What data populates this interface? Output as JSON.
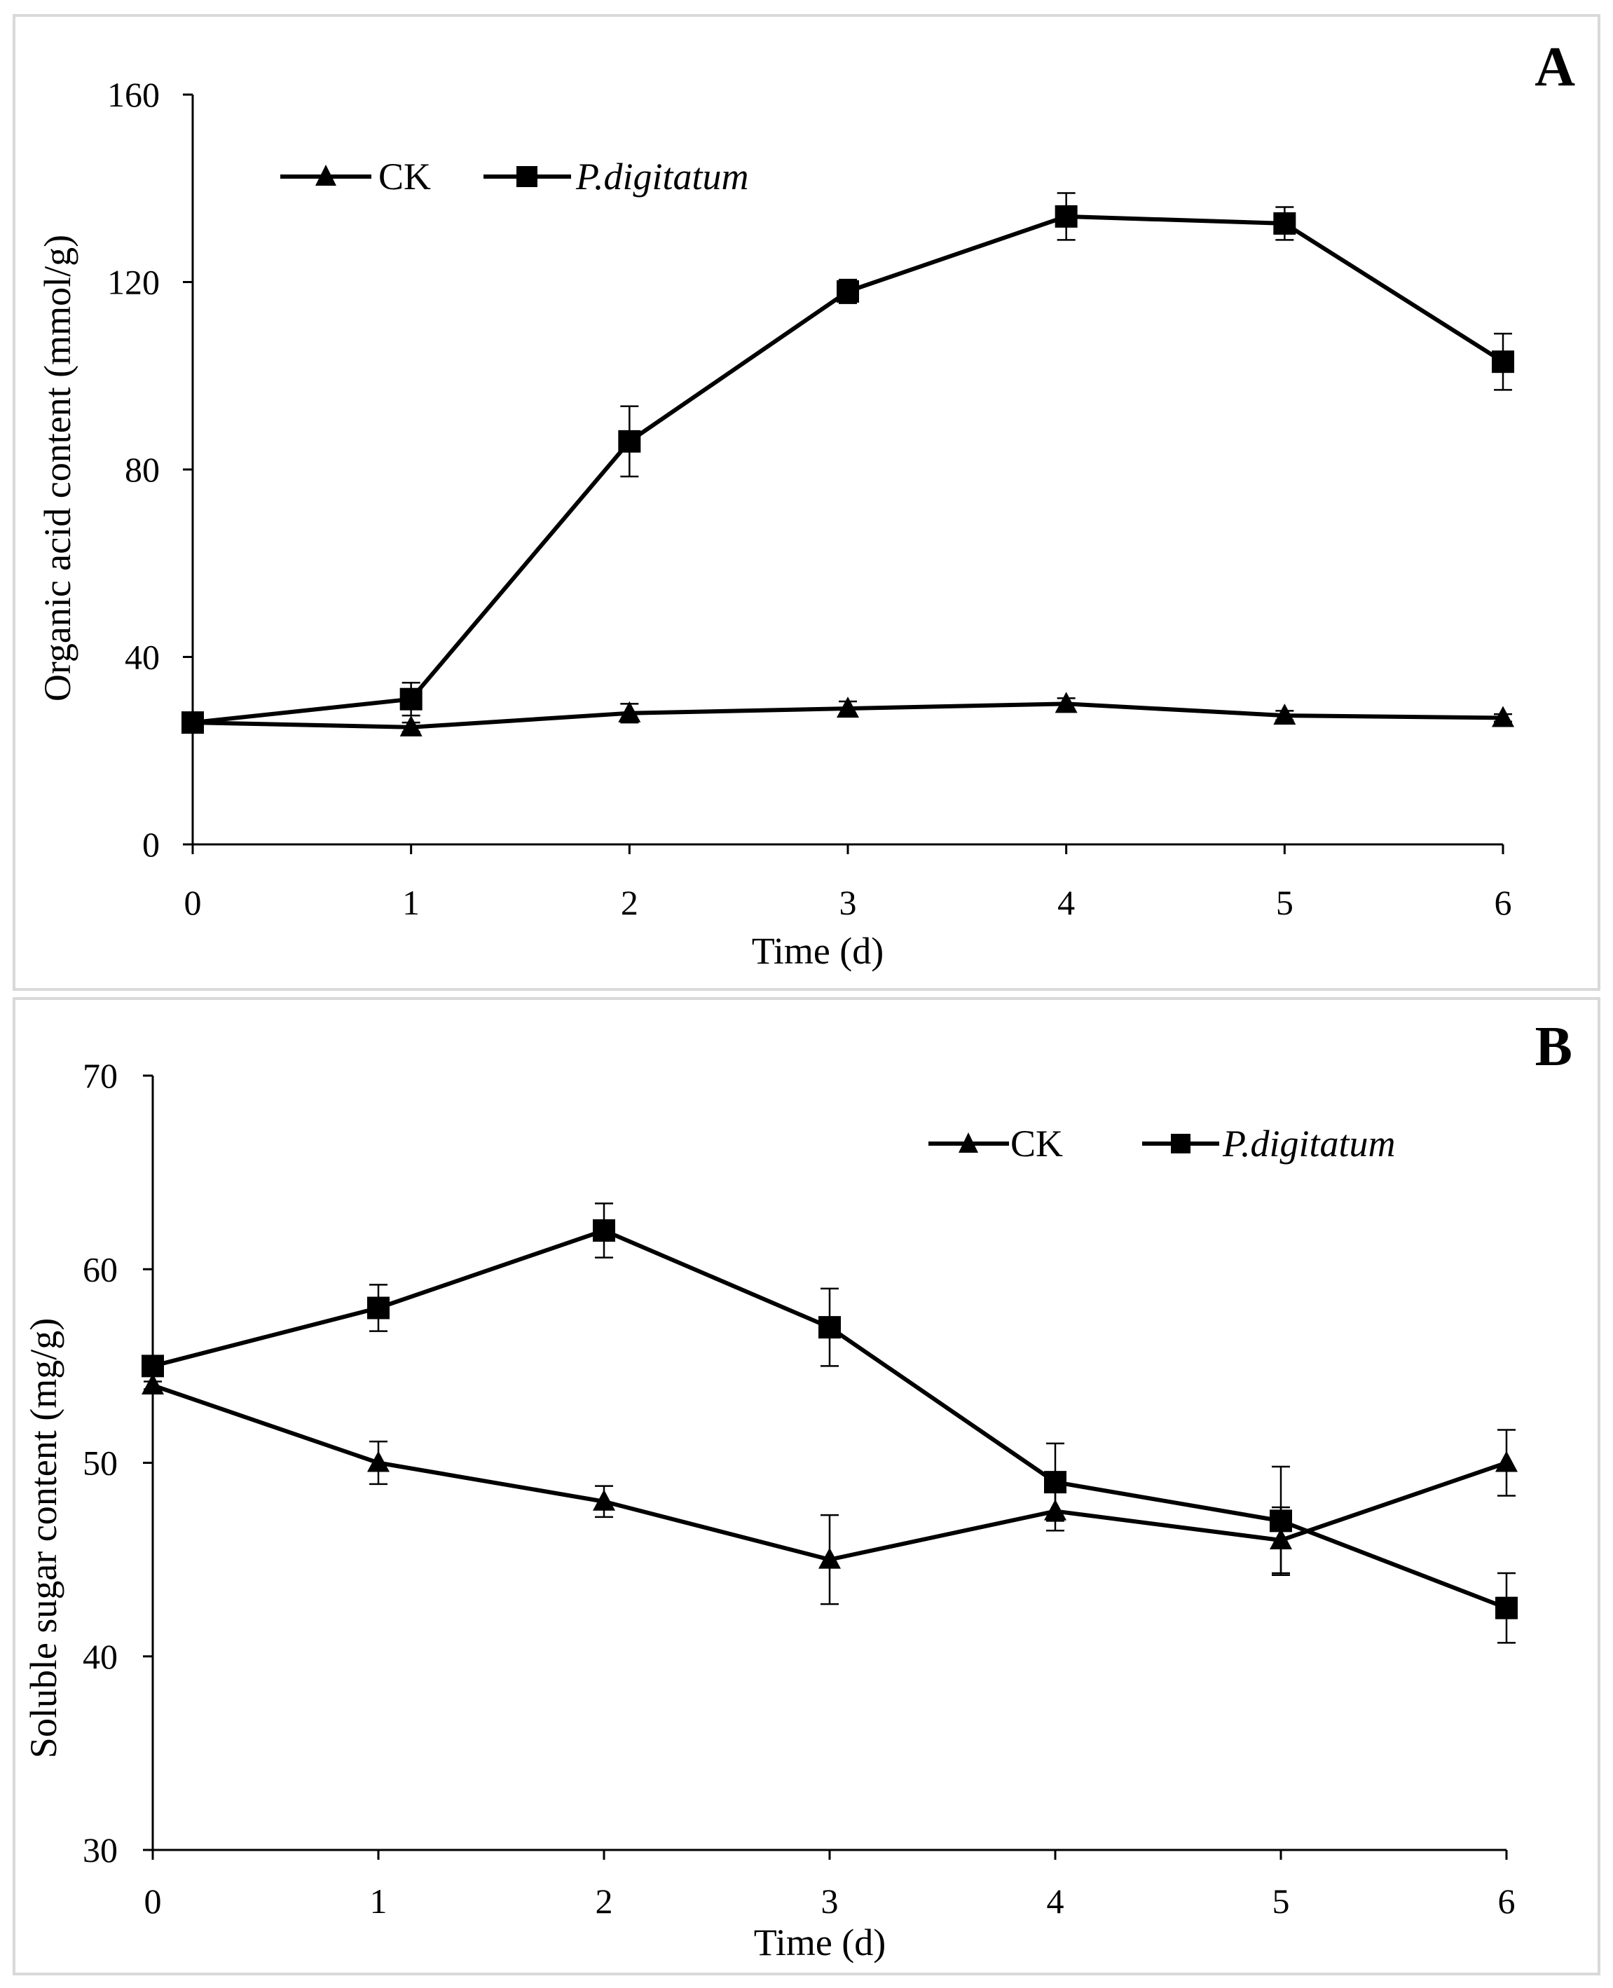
{
  "chart_data": [
    {
      "panel": "A",
      "type": "line",
      "title": "",
      "xlabel": "Time (d)",
      "ylabel": "Organic acid content (mmol/g)",
      "x": [
        0,
        1,
        2,
        3,
        4,
        5,
        6
      ],
      "xticks": [
        "0",
        "1",
        "2",
        "3",
        "4",
        "5",
        "6"
      ],
      "ylim": [
        0,
        160
      ],
      "yticks": [
        "0",
        "40",
        "80",
        "120",
        "160"
      ],
      "ytick_values": [
        0,
        40,
        80,
        120,
        160
      ],
      "legend": {
        "placement": "top-left",
        "entries": [
          "CK",
          "P.digitatum"
        ]
      },
      "series": [
        {
          "name": "CK",
          "marker": "triangle",
          "values": [
            26,
            25,
            28,
            29,
            30,
            27.5,
            27
          ],
          "errors": [
            0.8,
            1.0,
            2.0,
            1.5,
            1.2,
            1.0,
            0.8
          ]
        },
        {
          "name": "P.digitatum",
          "marker": "square",
          "values": [
            26,
            31,
            86,
            118,
            134,
            132.5,
            103
          ],
          "errors": [
            0.8,
            3.5,
            7.5,
            2.5,
            5.0,
            3.5,
            6.0
          ]
        }
      ]
    },
    {
      "panel": "B",
      "type": "line",
      "title": "",
      "xlabel": "Time (d)",
      "ylabel": "Soluble sugar content (mg/g)",
      "x": [
        0,
        1,
        2,
        3,
        4,
        5,
        6
      ],
      "xticks": [
        "0",
        "1",
        "2",
        "3",
        "4",
        "5",
        "6"
      ],
      "ylim": [
        30,
        70
      ],
      "yticks": [
        "30",
        "40",
        "50",
        "60",
        "70"
      ],
      "ytick_values": [
        30,
        40,
        50,
        60,
        70
      ],
      "legend": {
        "placement": "top-right",
        "entries": [
          "CK",
          "P.digitatum"
        ]
      },
      "series": [
        {
          "name": "CK",
          "marker": "triangle",
          "values": [
            54,
            50,
            48,
            45,
            47.5,
            46,
            50
          ],
          "errors": [
            0.2,
            1.1,
            0.8,
            2.3,
            1.0,
            1.7,
            1.7
          ]
        },
        {
          "name": "P.digitatum",
          "marker": "square",
          "values": [
            55,
            58,
            62,
            57,
            49,
            47,
            42.5
          ],
          "errors": [
            0.3,
            1.2,
            1.4,
            2.0,
            2.0,
            2.8,
            1.8
          ]
        }
      ]
    }
  ]
}
